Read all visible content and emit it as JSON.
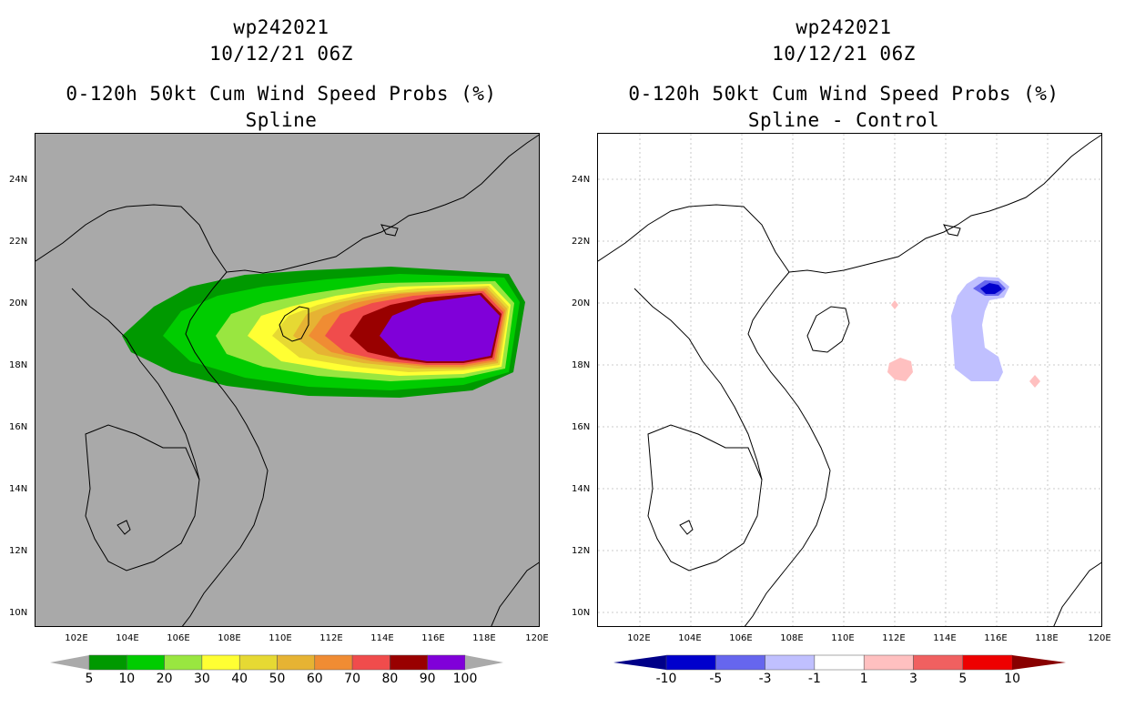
{
  "left": {
    "title1": "wp242021",
    "title2": "10/12/21 06Z",
    "title3": "0-120h 50kt Cum Wind Speed Probs (%)",
    "title4": "Spline",
    "colorbar": {
      "labels": [
        "5",
        "10",
        "20",
        "30",
        "40",
        "50",
        "60",
        "70",
        "80",
        "90",
        "100"
      ],
      "colors": [
        "#009900",
        "#00cc00",
        "#99e640",
        "#ffff33",
        "#e6d933",
        "#e6b333",
        "#f08c33",
        "#f04c4c",
        "#990000",
        "#8000d9"
      ],
      "end_color": "#aaaaaa"
    }
  },
  "right": {
    "title1": "wp242021",
    "title2": "10/12/21 06Z",
    "title3": "0-120h 50kt Cum Wind Speed Probs (%)",
    "title4": "Spline - Control",
    "colorbar": {
      "labels": [
        "-10",
        "-5",
        "-3",
        "-1",
        "1",
        "3",
        "5",
        "10"
      ],
      "colors": [
        "#0000cc",
        "#6666ee",
        "#c0c0ff",
        "#ffffff",
        "#ffc0c0",
        "#f06060",
        "#ee0000"
      ],
      "end_left": "#000088",
      "end_right": "#880000"
    }
  },
  "axes": {
    "lat_labels": [
      "24N",
      "22N",
      "20N",
      "18N",
      "16N",
      "14N",
      "12N",
      "10N"
    ],
    "lon_labels": [
      "102E",
      "104E",
      "106E",
      "108E",
      "110E",
      "112E",
      "114E",
      "116E",
      "118E",
      "120E"
    ]
  }
}
